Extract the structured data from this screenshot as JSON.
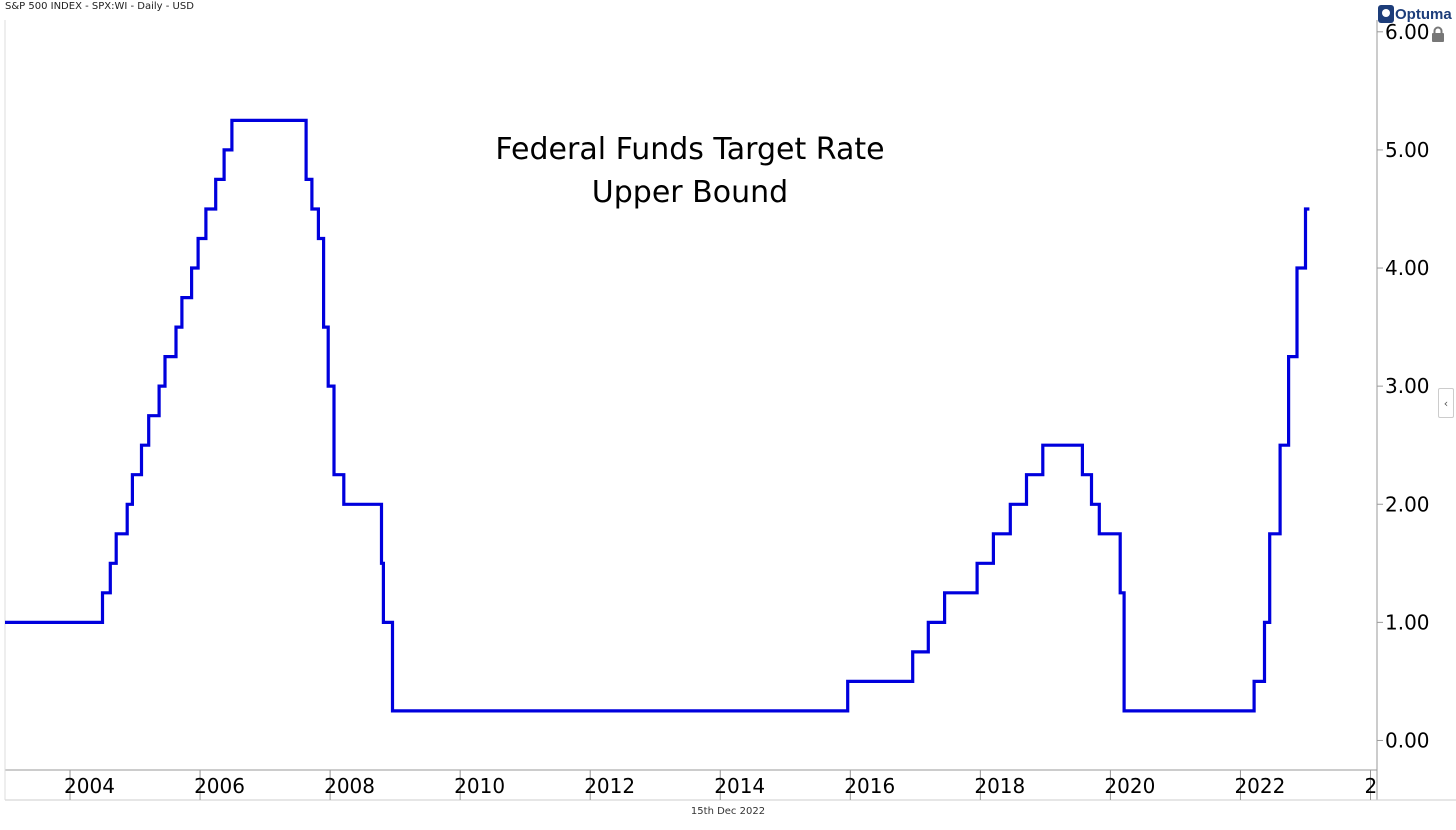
{
  "header": {
    "text": "S&P 500 INDEX - SPX:WI - Daily - USD"
  },
  "footer": {
    "date": "15th Dec 2022"
  },
  "brand": {
    "name": "Optuma"
  },
  "icons": {
    "logo": "optuma-logo-icon",
    "lock": "lock-icon",
    "collapse": "chevron-left-icon"
  },
  "colors": {
    "series": "#0000dd",
    "axis": "#888888",
    "text": "#000000"
  },
  "chart_data": {
    "type": "line",
    "title": "Federal Funds Target Rate",
    "subtitle": "Upper Bound",
    "xlabel": "",
    "ylabel": "",
    "line_style": "step",
    "xlim": [
      2003.0,
      2024.1
    ],
    "ylim": [
      -0.25,
      6.1
    ],
    "x_ticks": [
      "2004",
      "2006",
      "2008",
      "2010",
      "2012",
      "2014",
      "2016",
      "2018",
      "2020",
      "2022",
      "2"
    ],
    "y_ticks": [
      "0.00",
      "1.00",
      "2.00",
      "3.00",
      "4.00",
      "5.00",
      "6.00"
    ],
    "grid": false,
    "series": [
      {
        "x": [
          2003.0,
          2004.5,
          2004.62,
          2004.71,
          2004.88,
          2004.96,
          2005.1,
          2005.21,
          2005.37,
          2005.46,
          2005.63,
          2005.72,
          2005.87,
          2005.97,
          2006.09,
          2006.24,
          2006.37,
          2006.49,
          2006.72,
          2007.63,
          2007.72,
          2007.82,
          2007.9,
          2007.97,
          2008.06,
          2008.08,
          2008.21,
          2008.32,
          2008.79,
          2008.82,
          2008.96,
          2015.96,
          2016.96,
          2017.2,
          2017.45,
          2017.95,
          2018.2,
          2018.46,
          2018.71,
          2018.96,
          2019.57,
          2019.71,
          2019.83,
          2020.15,
          2020.21,
          2022.21,
          2022.37,
          2022.45,
          2022.61,
          2022.74,
          2022.87,
          2023.0,
          2023.06
        ],
        "y": [
          1.0,
          1.25,
          1.5,
          1.75,
          2.0,
          2.25,
          2.5,
          2.75,
          3.0,
          3.25,
          3.5,
          3.75,
          4.0,
          4.25,
          4.5,
          4.75,
          5.0,
          5.25,
          5.25,
          4.75,
          4.5,
          4.25,
          3.5,
          3.0,
          2.25,
          2.25,
          2.0,
          2.0,
          1.5,
          1.0,
          0.25,
          0.5,
          0.75,
          1.0,
          1.25,
          1.5,
          1.75,
          2.0,
          2.25,
          2.5,
          2.25,
          2.0,
          1.75,
          1.25,
          0.25,
          0.5,
          1.0,
          1.75,
          2.5,
          3.25,
          4.0,
          4.5,
          4.5
        ]
      }
    ]
  }
}
